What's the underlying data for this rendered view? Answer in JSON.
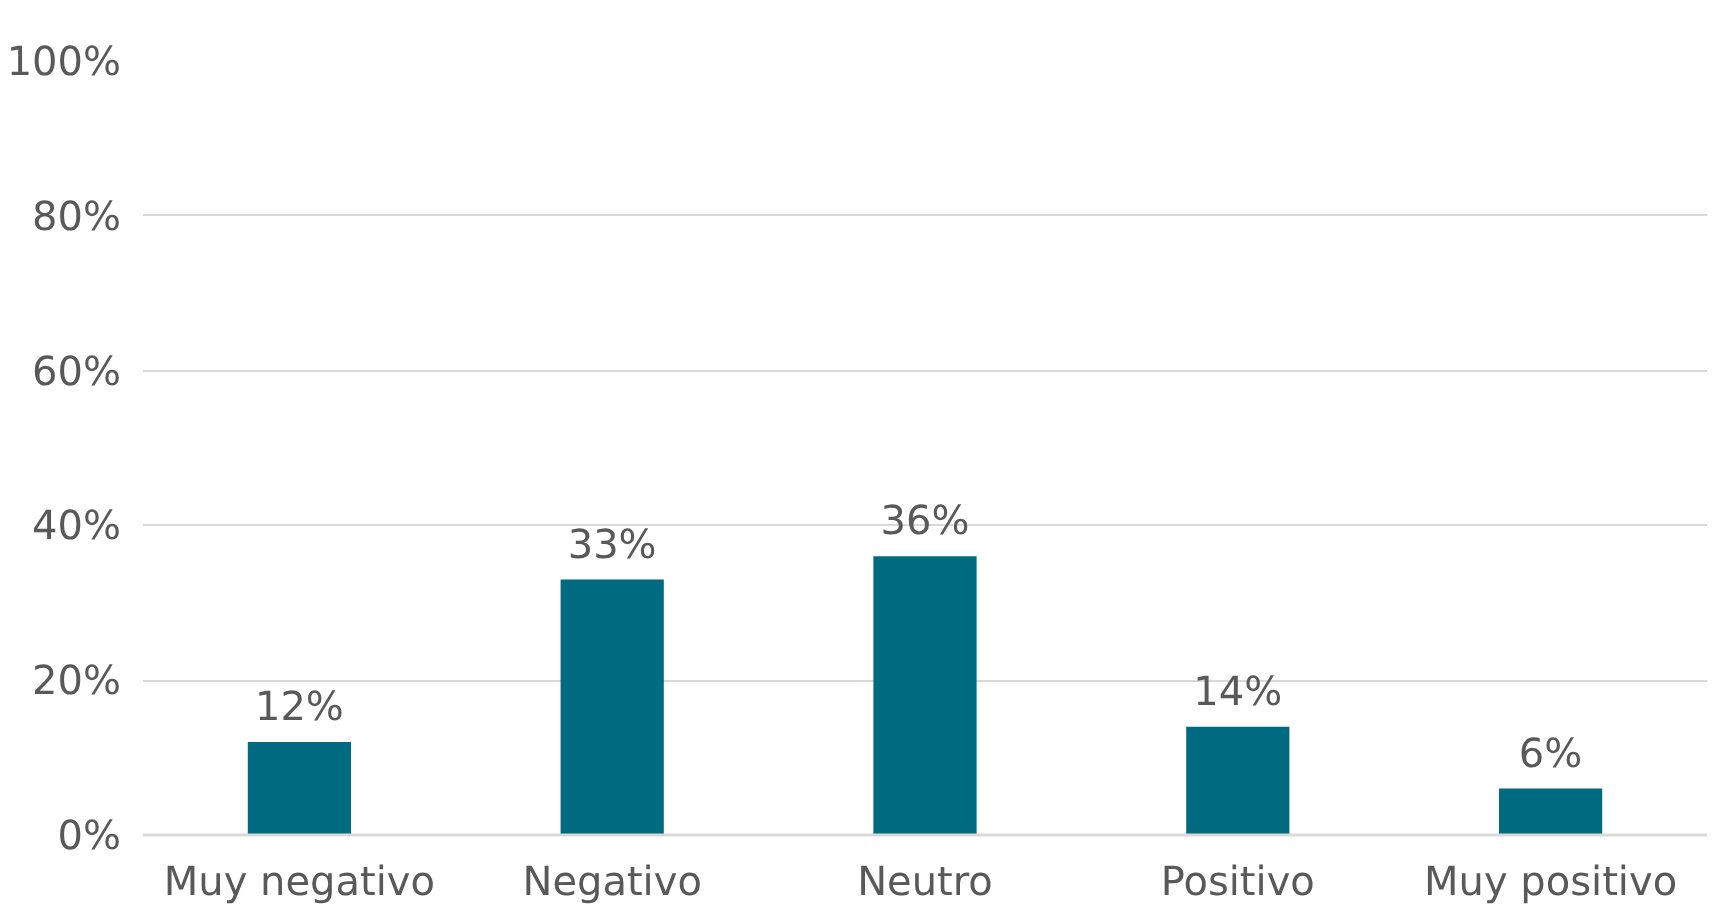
{
  "chart_data": {
    "type": "bar",
    "categories": [
      "Muy negativo",
      "Negativo",
      "Neutro",
      "Positivo",
      "Muy positivo"
    ],
    "values": [
      12,
      33,
      36,
      14,
      6
    ],
    "value_labels": [
      "12%",
      "33%",
      "36%",
      "14%",
      "6%"
    ],
    "color": "#006a80",
    "ylim": [
      0,
      100
    ],
    "yticks": [
      {
        "value": 0,
        "label": "0%"
      },
      {
        "value": 20,
        "label": "20%"
      },
      {
        "value": 40,
        "label": "40%"
      },
      {
        "value": 60,
        "label": "60%"
      },
      {
        "value": 80,
        "label": "80%"
      },
      {
        "value": 100,
        "label": "100%"
      }
    ],
    "grid": "y"
  }
}
